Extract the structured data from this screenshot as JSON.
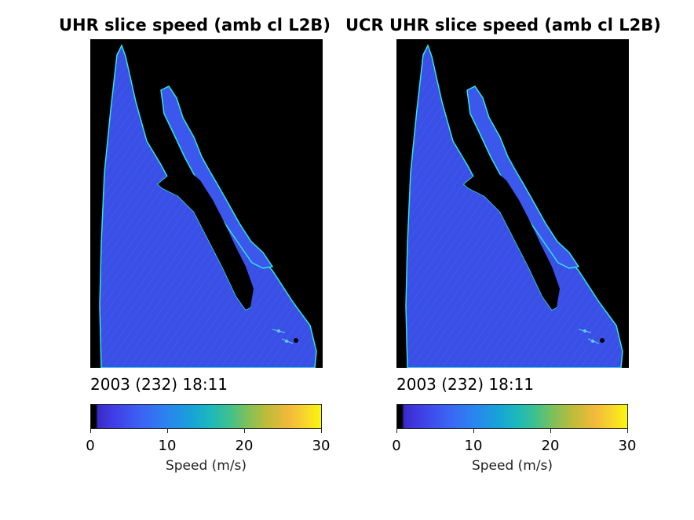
{
  "panels": [
    {
      "title": "UHR slice speed (amb cl L2B)",
      "timestamp": "2003 (232) 18:11",
      "colorbar": {
        "ticks": [
          "0",
          "10",
          "20",
          "30"
        ],
        "label": "Speed (m/s)"
      }
    },
    {
      "title": "UCR UHR slice speed (amb cl L2B)",
      "timestamp": "2003 (232) 18:11",
      "colorbar": {
        "ticks": [
          "0",
          "10",
          "20",
          "30"
        ],
        "label": "Speed (m/s)"
      }
    }
  ],
  "colors": {
    "land": "#000000",
    "ocean": "#3b52e8",
    "coast": "#2ee6e6",
    "colormap": [
      "#000000",
      "#3a2bc8",
      "#3c63f5",
      "#17a3d6",
      "#3fc08f",
      "#bcbc3a",
      "#f3b93b",
      "#f8f80e"
    ]
  }
}
